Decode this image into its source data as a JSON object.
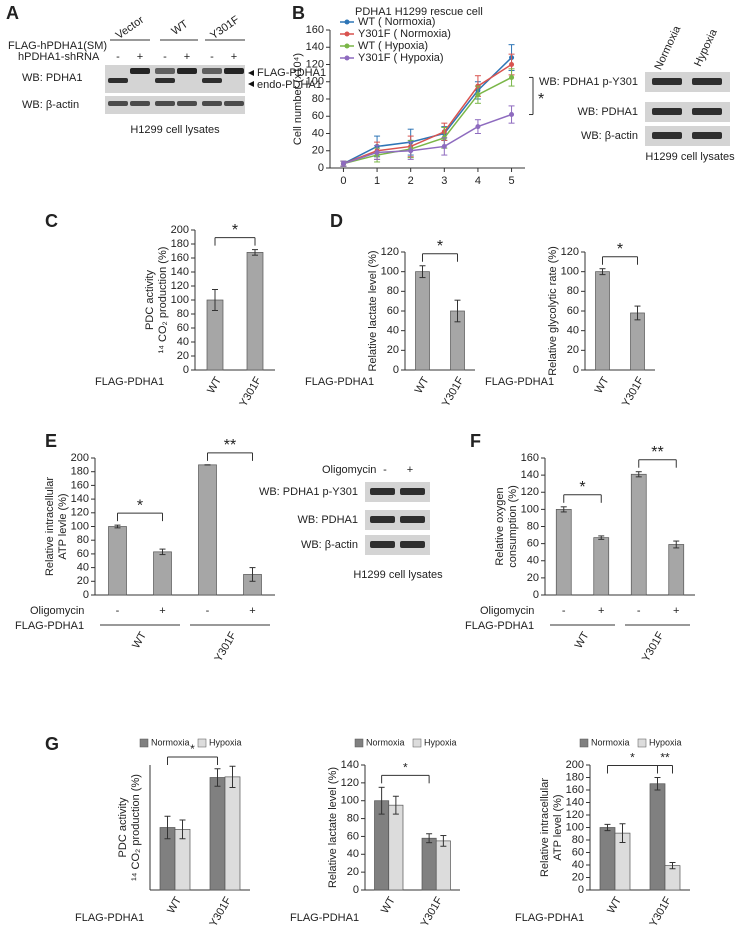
{
  "panel_labels": [
    "A",
    "B",
    "C",
    "D",
    "E",
    "F",
    "G"
  ],
  "blot_a": {
    "row_labels": [
      "FLAG-hPDHA1(SM)",
      "hPDHA1-shRNA"
    ],
    "lanes": [
      "Vector",
      "WT",
      "Y301F"
    ],
    "shrna_signs": [
      "-",
      "+",
      "-",
      "+",
      "-",
      "+"
    ],
    "wb_labels": [
      "WB: PDHA1",
      "WB: β-actin"
    ],
    "band_labels": [
      "FLAG-PDHA1",
      "endo-PDHA1"
    ],
    "caption": "H1299 cell lysates"
  },
  "blot_b": {
    "lanes": [
      "Normoxia",
      "Hypoxia"
    ],
    "wb_labels": [
      "WB: PDHA1 p-Y301",
      "WB: PDHA1",
      "WB: β-actin"
    ],
    "caption": "H1299 cell lysates"
  },
  "blot_e": {
    "treatment": "Oligomycin",
    "signs": [
      "-",
      "+"
    ],
    "wb_labels": [
      "WB: PDHA1 p-Y301",
      "WB: PDHA1",
      "WB: β-actin"
    ],
    "caption": "H1299 cell lysates"
  },
  "chart_data": [
    {
      "type": "line",
      "title": "PDHA1 H1299 rescue cell",
      "ylabel": "Cell number (x10⁴)",
      "x": [
        0,
        1,
        2,
        3,
        4,
        5
      ],
      "xlim": [
        -0.4,
        5.4
      ],
      "xticks": [
        0,
        1,
        2,
        3,
        4,
        5
      ],
      "ylim": [
        0,
        160
      ],
      "yticks": [
        0,
        20,
        40,
        60,
        80,
        100,
        120,
        140,
        160
      ],
      "legend": "upper left",
      "annotations": [
        "*"
      ],
      "series": [
        {
          "name": "WT ( Normoxia)",
          "color": "#2e75b6",
          "values": [
            5,
            25,
            30,
            40,
            90,
            128
          ],
          "errors": [
            3,
            12,
            15,
            8,
            10,
            15
          ]
        },
        {
          "name": "Y301F ( Normoxia)",
          "color": "#d9534f",
          "values": [
            5,
            20,
            25,
            42,
            95,
            120
          ],
          "errors": [
            3,
            10,
            12,
            10,
            12,
            12
          ]
        },
        {
          "name": "WT ( Hypoxia)",
          "color": "#7ab648",
          "values": [
            5,
            15,
            22,
            35,
            85,
            105
          ],
          "errors": [
            3,
            8,
            10,
            12,
            10,
            10
          ]
        },
        {
          "name": "Y301F ( Hypoxia)",
          "color": "#8e6bbf",
          "values": [
            5,
            18,
            20,
            25,
            48,
            62
          ],
          "errors": [
            3,
            8,
            10,
            10,
            8,
            10
          ]
        }
      ]
    },
    {
      "type": "bar",
      "ylabel": [
        "PDC activity",
        "¹⁴ CO₂ production (%)"
      ],
      "xlabel": "FLAG-PDHA1",
      "categories": [
        "WT",
        "Y301F"
      ],
      "values": [
        100,
        168
      ],
      "errors": [
        15,
        4
      ],
      "color": "#a6a6a6",
      "ylim": [
        0,
        200
      ],
      "yticks": [
        0,
        20,
        40,
        60,
        80,
        100,
        120,
        140,
        160,
        180,
        200
      ],
      "annotations": [
        "*"
      ]
    },
    {
      "type": "bar",
      "ylabel": [
        "Relative lactate level (%)"
      ],
      "xlabel": "FLAG-PDHA1",
      "categories": [
        "WT",
        "Y301F"
      ],
      "values": [
        100,
        60
      ],
      "errors": [
        6,
        11
      ],
      "color": "#a6a6a6",
      "ylim": [
        0,
        120
      ],
      "yticks": [
        0,
        20,
        40,
        60,
        80,
        100,
        120
      ],
      "annotations": [
        "*"
      ]
    },
    {
      "type": "bar",
      "ylabel": [
        "Relative glycolytic rate (%)"
      ],
      "xlabel": "FLAG-PDHA1",
      "categories": [
        "WT",
        "Y301F"
      ],
      "values": [
        100,
        58
      ],
      "errors": [
        3,
        7
      ],
      "color": "#a6a6a6",
      "ylim": [
        0,
        120
      ],
      "yticks": [
        0,
        20,
        40,
        60,
        80,
        100,
        120
      ],
      "annotations": [
        "*"
      ]
    },
    {
      "type": "bar",
      "ylabel": [
        "Relative intracellular",
        "ATP levle (%)"
      ],
      "row_label": "Oligomycin",
      "group_label": "FLAG-PDHA1",
      "groups": [
        "WT",
        "Y301F"
      ],
      "categories": [
        "-",
        "+",
        "-",
        "+"
      ],
      "values": [
        100,
        63,
        190,
        30
      ],
      "errors": [
        2,
        4,
        0,
        10
      ],
      "color": "#a6a6a6",
      "ylim": [
        0,
        200
      ],
      "yticks": [
        0,
        20,
        40,
        60,
        80,
        100,
        120,
        140,
        160,
        180,
        200
      ],
      "annotations": [
        "*",
        "**"
      ]
    },
    {
      "type": "bar",
      "ylabel": [
        "Relative oxygen",
        "consumption (%)"
      ],
      "row_label": "Oligomycin",
      "group_label": "FLAG-PDHA1",
      "groups": [
        "WT",
        "Y301F"
      ],
      "categories": [
        "-",
        "+",
        "-",
        "+"
      ],
      "values": [
        100,
        67,
        141,
        59
      ],
      "errors": [
        3,
        2,
        3,
        4
      ],
      "color": "#a6a6a6",
      "ylim": [
        0,
        160
      ],
      "yticks": [
        0,
        20,
        40,
        60,
        80,
        100,
        120,
        140,
        160
      ],
      "annotations": [
        "*",
        "**"
      ]
    },
    {
      "type": "bar",
      "ylabel": [
        "PDC activity",
        "¹⁴ CO₂ production (%)"
      ],
      "xlabel": "FLAG-PDHA1",
      "categories": [
        "WT",
        "Y301F"
      ],
      "ylim": [
        0,
        200
      ],
      "legend": "top",
      "annotations": [
        "*"
      ],
      "series": [
        {
          "name": "Normoxia",
          "color": "#808080",
          "values": [
            100,
            180
          ],
          "errors": [
            18,
            14
          ]
        },
        {
          "name": "Hypoxia",
          "color": "#dcdcdc",
          "values": [
            97,
            181
          ],
          "errors": [
            15,
            17
          ]
        }
      ]
    },
    {
      "type": "bar",
      "ylabel": [
        "Relative lactate level (%)"
      ],
      "xlabel": "FLAG-PDHA1",
      "categories": [
        "WT",
        "Y301F"
      ],
      "ylim": [
        0,
        140
      ],
      "yticks": [
        0,
        20,
        40,
        60,
        80,
        100,
        120,
        140
      ],
      "legend": "top",
      "annotations": [
        "*"
      ],
      "series": [
        {
          "name": "Normoxia",
          "color": "#808080",
          "values": [
            100,
            58
          ],
          "errors": [
            15,
            5
          ]
        },
        {
          "name": "Hypoxia",
          "color": "#dcdcdc",
          "values": [
            95,
            55
          ],
          "errors": [
            10,
            6
          ]
        }
      ]
    },
    {
      "type": "bar",
      "ylabel": [
        "Relative intracellular",
        "ATP level (%)"
      ],
      "xlabel": "FLAG-PDHA1",
      "categories": [
        "WT",
        "Y301F"
      ],
      "ylim": [
        0,
        200
      ],
      "yticks": [
        0,
        20,
        40,
        60,
        80,
        100,
        120,
        140,
        160,
        180,
        200
      ],
      "legend": "top",
      "annotations": [
        "*",
        "**"
      ],
      "series": [
        {
          "name": "Normoxia",
          "color": "#808080",
          "values": [
            100,
            170
          ],
          "errors": [
            5,
            10
          ]
        },
        {
          "name": "Hypoxia",
          "color": "#dcdcdc",
          "values": [
            91,
            39
          ],
          "errors": [
            15,
            5
          ]
        }
      ]
    }
  ]
}
